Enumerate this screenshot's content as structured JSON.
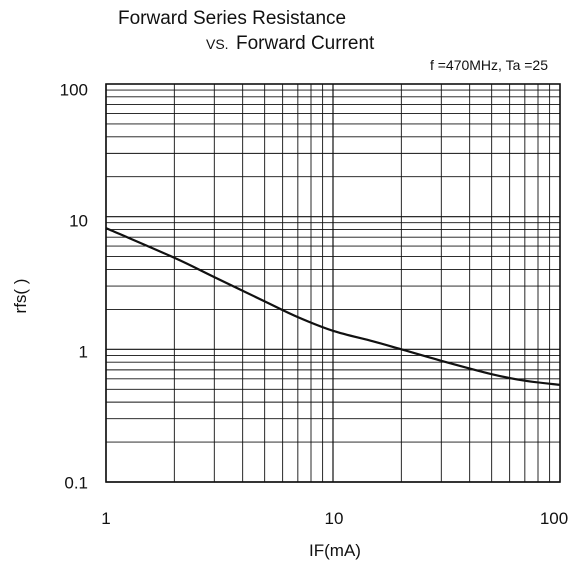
{
  "chart_data": {
    "type": "line",
    "title": "Forward Series Resistance",
    "subtitle_prefix": "VS.",
    "subtitle": "Forward Current",
    "condition": "f =470MHz, Ta =25",
    "xlabel": "IF(mA)",
    "ylabel": "rfs(   )",
    "xscale": "log",
    "yscale": "log",
    "xlim": [
      1,
      100
    ],
    "ylim": [
      0.1,
      100
    ],
    "x_ticks": [
      "1",
      "10",
      "100"
    ],
    "y_ticks": [
      "100",
      "10",
      "1",
      "0.1"
    ],
    "grid": true,
    "colors": {
      "line": "#111111",
      "grid": "#111111",
      "background": "#ffffff"
    },
    "series": [
      {
        "x": [
          1,
          2,
          3,
          5,
          7,
          10,
          15,
          20,
          30,
          50,
          70,
          100
        ],
        "y": [
          8.2,
          4.9,
          3.5,
          2.3,
          1.75,
          1.38,
          1.15,
          1.0,
          0.82,
          0.65,
          0.58,
          0.54
        ]
      }
    ]
  }
}
